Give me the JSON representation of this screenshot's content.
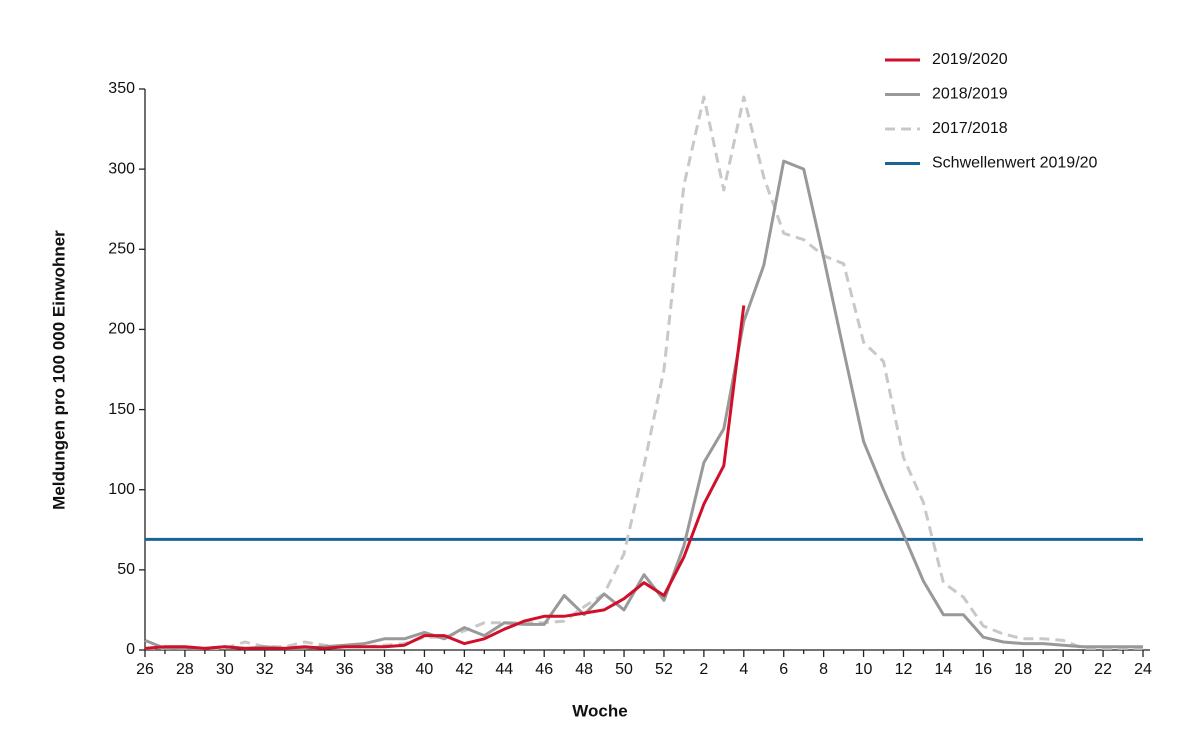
{
  "chart_data": {
    "type": "line",
    "x_label": "Woche",
    "y_label": "Meldungen pro 100 000 Einwohner",
    "categories": [
      "26",
      null,
      "28",
      null,
      "30",
      null,
      "32",
      null,
      "34",
      null,
      "36",
      null,
      "38",
      null,
      "40",
      null,
      "42",
      null,
      "44",
      null,
      "46",
      null,
      "48",
      null,
      "50",
      null,
      "52",
      null,
      "2",
      null,
      "4",
      null,
      "6",
      null,
      "8",
      null,
      "10",
      null,
      "12",
      null,
      "14",
      null,
      "16",
      null,
      "18",
      null,
      "20",
      null,
      "22",
      null,
      "24"
    ],
    "ylim": [
      0,
      350
    ],
    "yticks": [
      0,
      50,
      100,
      150,
      200,
      250,
      300,
      350
    ],
    "legend": "top-right",
    "series": [
      {
        "name": "2019/2020",
        "color": "#d0102a",
        "style": "solid",
        "values": [
          1,
          2,
          2,
          1,
          2,
          1,
          1,
          1,
          2,
          1,
          2,
          2,
          2,
          3,
          9,
          9,
          4,
          7,
          13,
          18,
          21,
          21,
          23,
          25,
          32,
          42,
          34,
          58,
          91,
          115,
          215,
          null,
          null,
          null,
          null,
          null,
          null,
          null,
          null,
          null,
          null,
          null,
          null,
          null,
          null,
          null,
          null,
          null,
          null,
          null,
          null
        ]
      },
      {
        "name": "2018/2019",
        "color": "#999999",
        "style": "solid",
        "values": [
          6,
          1,
          1,
          1,
          2,
          1,
          2,
          1,
          1,
          2,
          3,
          4,
          7,
          7,
          11,
          7,
          14,
          9,
          17,
          16,
          16,
          34,
          22,
          35,
          25,
          47,
          31,
          65,
          117,
          138,
          205,
          240,
          305,
          300,
          245,
          187,
          130,
          100,
          72,
          43,
          22,
          22,
          8,
          5,
          4,
          4,
          3,
          2,
          2,
          2,
          2
        ]
      },
      {
        "name": "2017/2018",
        "color": "#c8c8c8",
        "style": "dashed",
        "values": [
          1,
          1,
          1,
          1,
          1,
          5,
          2,
          2,
          5,
          3,
          2,
          2,
          3,
          4,
          8,
          8,
          12,
          17,
          17,
          17,
          17,
          18,
          27,
          35,
          60,
          115,
          175,
          290,
          345,
          287,
          345,
          295,
          260,
          256,
          246,
          241,
          192,
          180,
          120,
          92,
          42,
          33,
          15,
          10,
          7,
          7,
          6,
          1,
          1,
          1,
          1
        ]
      },
      {
        "name": "Schwellenwert 2019/20",
        "color": "#1a6496",
        "style": "solid",
        "values": [
          69,
          69,
          69,
          69,
          69,
          69,
          69,
          69,
          69,
          69,
          69,
          69,
          69,
          69,
          69,
          69,
          69,
          69,
          69,
          69,
          69,
          69,
          69,
          69,
          69,
          69,
          69,
          69,
          69,
          69,
          69,
          69,
          69,
          69,
          69,
          69,
          69,
          69,
          69,
          69,
          69,
          69,
          69,
          69,
          69,
          69,
          69,
          69,
          69,
          69,
          69
        ]
      }
    ]
  }
}
